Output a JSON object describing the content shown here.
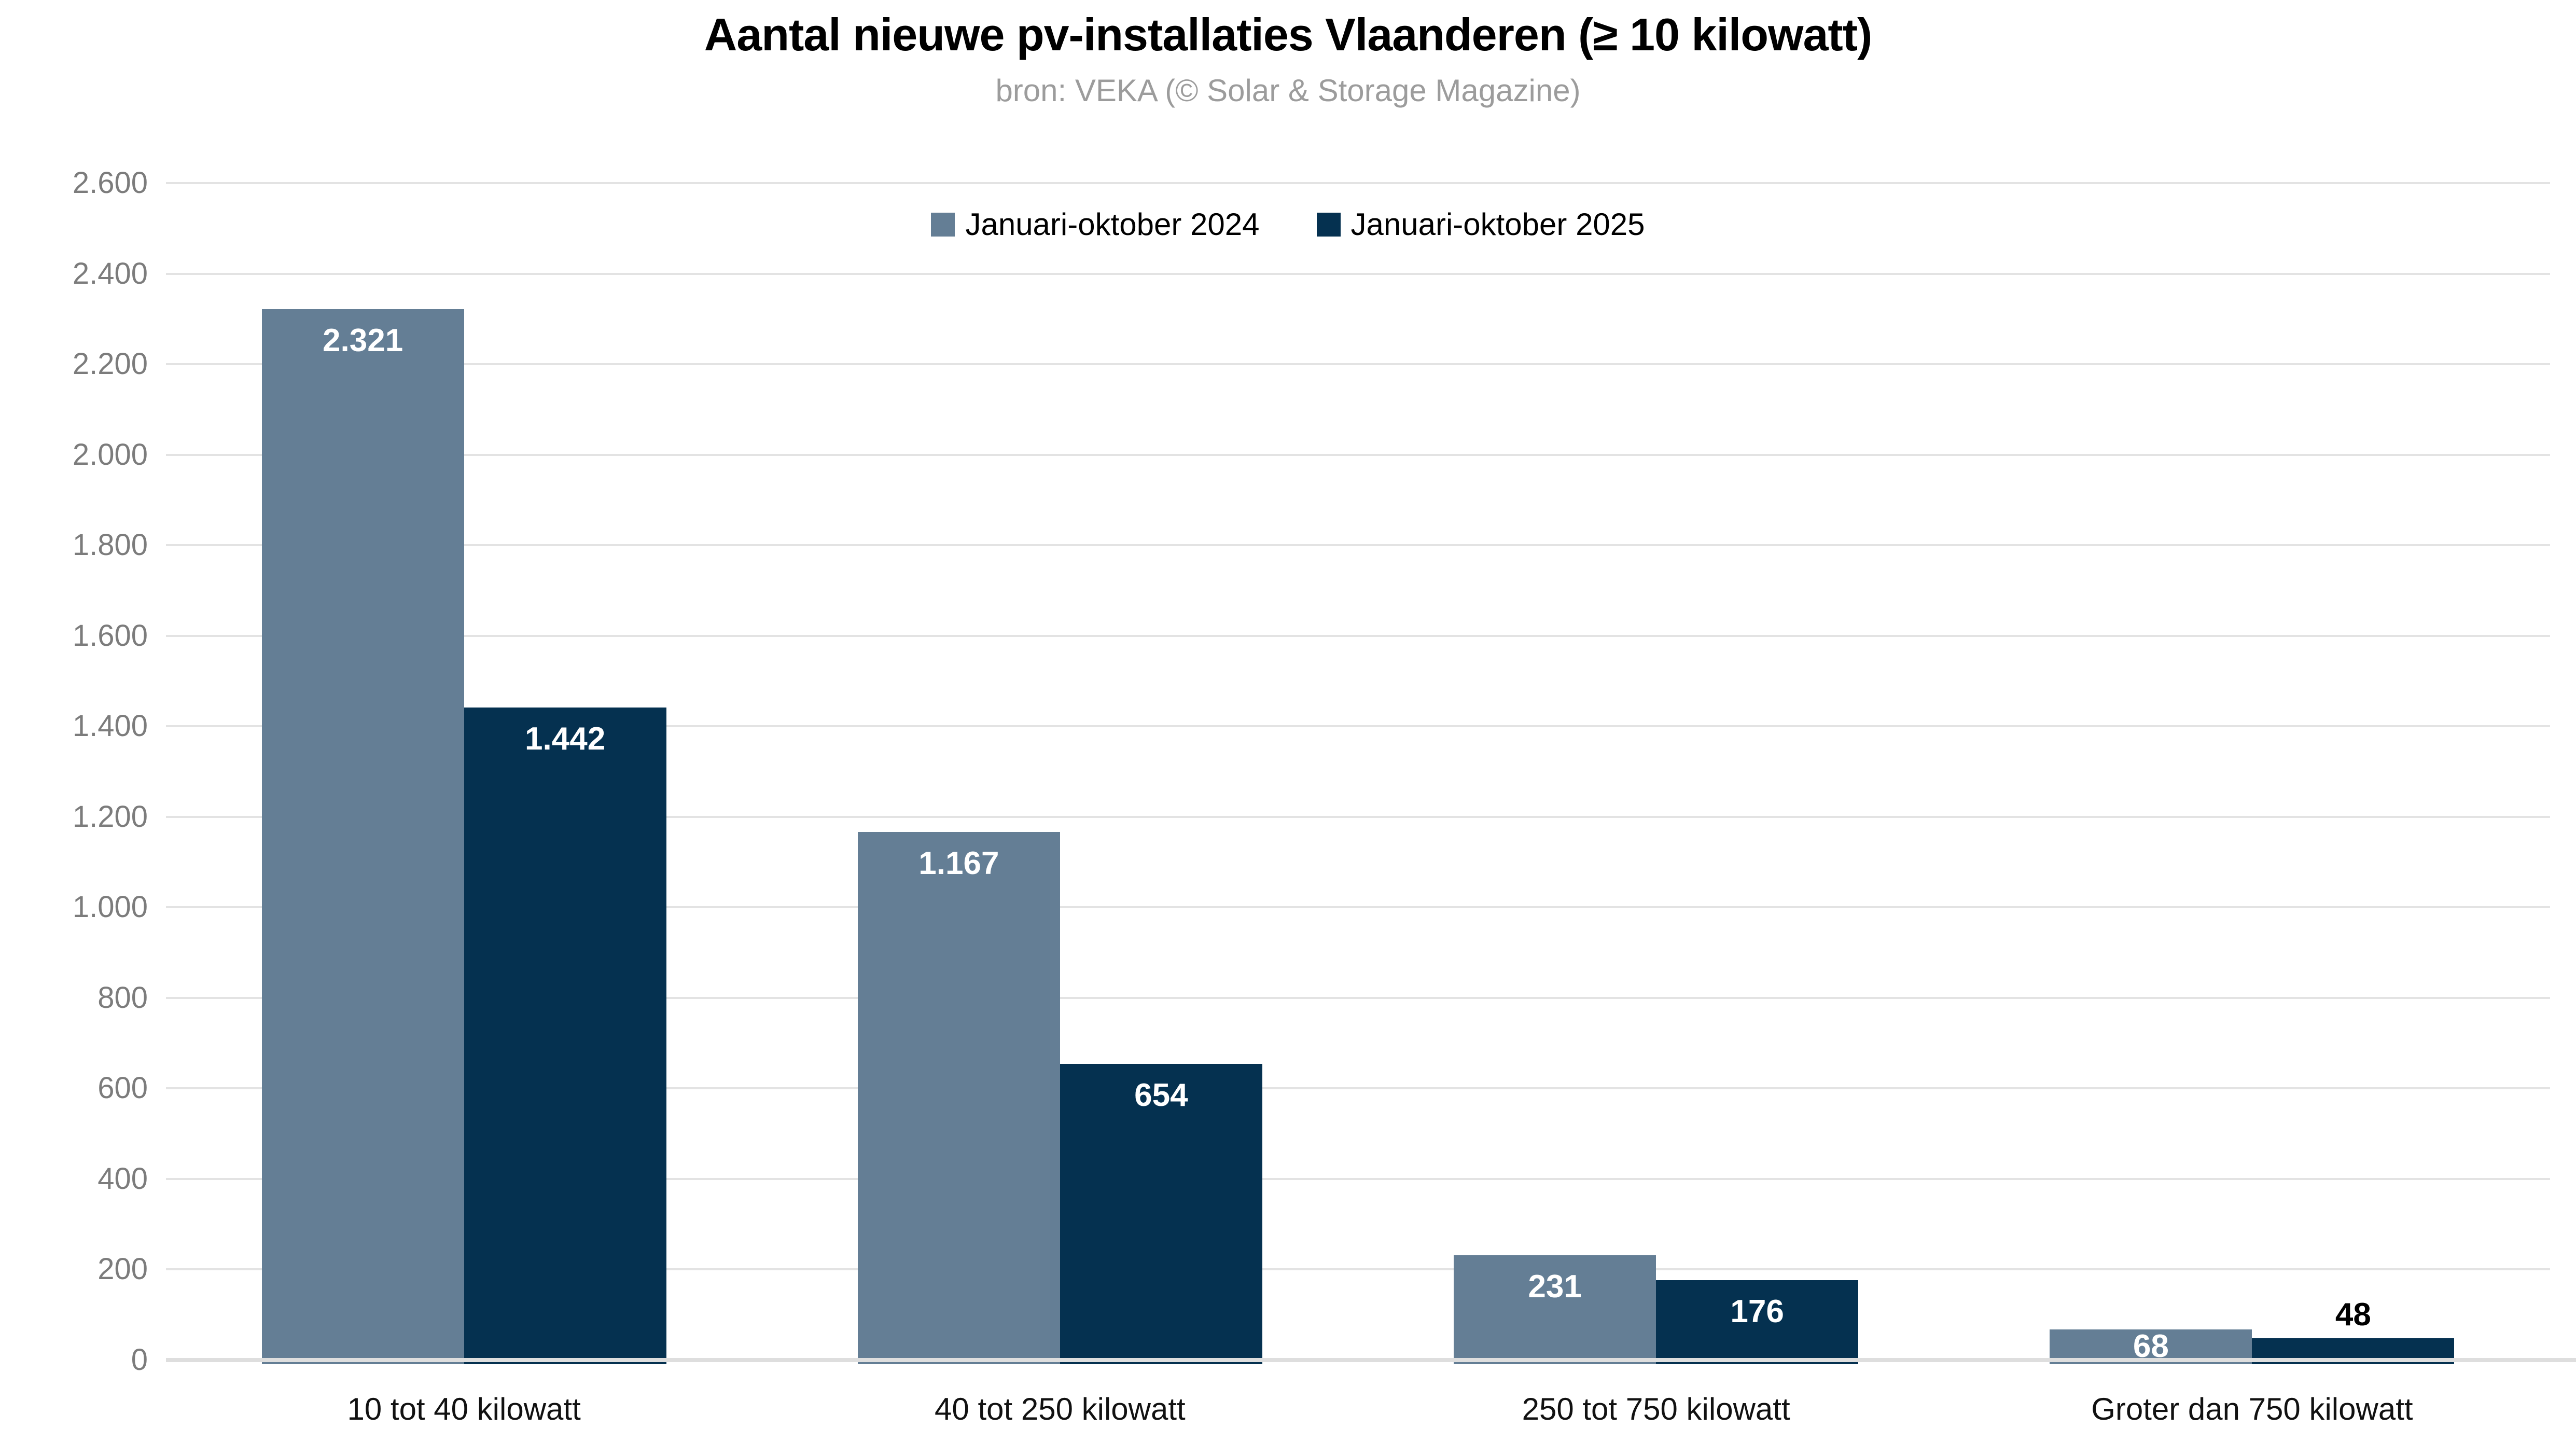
{
  "page": {
    "background": "#ffffff"
  },
  "chart_data": {
    "type": "bar",
    "title": "Aantal nieuwe pv-installaties Vlaanderen (≥ 10 kilowatt)",
    "subtitle": "bron: VEKA (© Solar & Storage Magazine)",
    "categories": [
      "10 tot 40 kilowatt",
      "40 tot 250 kilowatt",
      "250 tot 750 kilowatt",
      "Groter dan 750 kilowatt"
    ],
    "series": [
      {
        "name": "Januari-oktober 2024",
        "color": "#647e95",
        "values": [
          2321,
          1167,
          231,
          68
        ],
        "value_labels": [
          "2.321",
          "1.167",
          "231",
          "68"
        ]
      },
      {
        "name": "Januari-oktober 2025",
        "color": "#053150",
        "values": [
          1442,
          654,
          176,
          48
        ],
        "value_labels": [
          "1.442",
          "654",
          "176",
          "48"
        ]
      }
    ],
    "ylim": [
      0,
      2600
    ],
    "ytick_step": 200,
    "yticks": [
      {
        "v": 0,
        "label": "0"
      },
      {
        "v": 200,
        "label": "200"
      },
      {
        "v": 400,
        "label": "400"
      },
      {
        "v": 600,
        "label": "600"
      },
      {
        "v": 800,
        "label": "800"
      },
      {
        "v": 1000,
        "label": "1.000"
      },
      {
        "v": 1200,
        "label": "1.200"
      },
      {
        "v": 1400,
        "label": "1.400"
      },
      {
        "v": 1600,
        "label": "1.600"
      },
      {
        "v": 1800,
        "label": "1.800"
      },
      {
        "v": 2000,
        "label": "2.000"
      },
      {
        "v": 2200,
        "label": "2.200"
      },
      {
        "v": 2400,
        "label": "2.400"
      },
      {
        "v": 2600,
        "label": "2.600"
      }
    ],
    "grid": "horizontal",
    "legend_position": "top-center",
    "styles": {
      "title_color": "#000000",
      "subtitle_color": "#9c9c9c",
      "tick_color": "#7c7c7c",
      "gridline_color": "#e3e3e3",
      "axisline_color": "#dedede",
      "label_inside_color": "#ffffff",
      "label_above_color": "#000000",
      "category_color": "#111111"
    }
  }
}
